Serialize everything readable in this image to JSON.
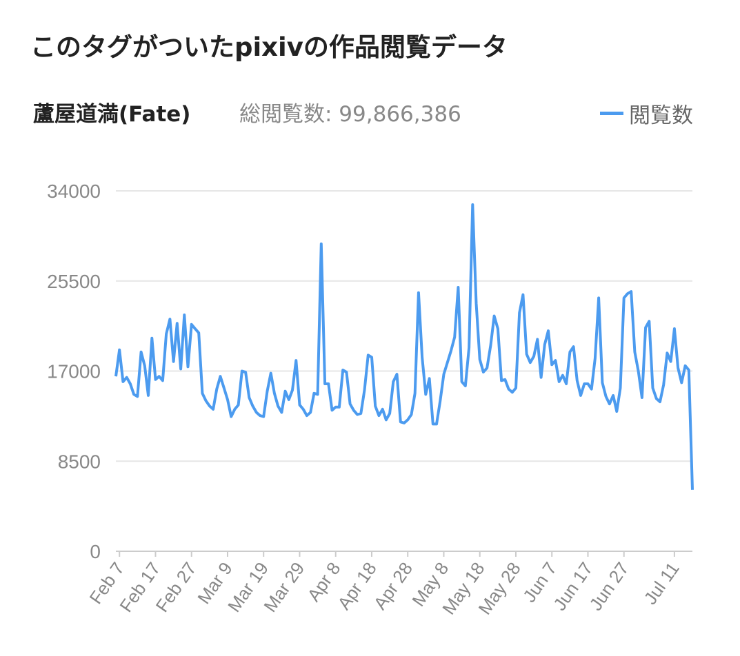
{
  "page": {
    "heading": "このタグがついたpixivの作品閲覧データ",
    "tag_name": "蘆屋道満(Fate)",
    "total_label": "総閲覧数: 99,866,386"
  },
  "chart_data": {
    "type": "line",
    "title": "",
    "xlabel": "",
    "ylabel": "",
    "ylim": [
      0,
      34000
    ],
    "yticks": [
      0,
      8500,
      17000,
      25500,
      34000
    ],
    "xtick_labels": [
      "Feb 7",
      "Feb 17",
      "Feb 27",
      "Mar 9",
      "Mar 19",
      "Mar 29",
      "Apr 8",
      "Apr 18",
      "Apr 28",
      "May 8",
      "May 18",
      "May 28",
      "Jun 7",
      "Jun 17",
      "Jun 27",
      "Jul 11"
    ],
    "xtick_days": [
      7,
      17,
      27,
      37,
      47,
      57,
      67,
      77,
      87,
      97,
      107,
      117,
      127,
      137,
      147,
      161
    ],
    "grid": true,
    "legend": "top-right",
    "color": "#4C9BEF",
    "series": [
      {
        "name": "閲覧数",
        "start_day": 6,
        "values": [
          16500,
          19000,
          16000,
          16400,
          15800,
          14800,
          14600,
          18800,
          17500,
          14700,
          20100,
          16200,
          16500,
          16100,
          20500,
          21900,
          17900,
          21500,
          17200,
          22300,
          17400,
          21400,
          21000,
          20600,
          14900,
          14200,
          13700,
          13400,
          15300,
          16500,
          15400,
          14300,
          12700,
          13400,
          13800,
          17000,
          16900,
          14500,
          13700,
          13100,
          12800,
          12700,
          15100,
          16800,
          14900,
          13700,
          13100,
          15100,
          14300,
          15200,
          18000,
          13800,
          13400,
          12800,
          13100,
          14900,
          14800,
          29000,
          15800,
          15800,
          13300,
          13600,
          13600,
          17100,
          16900,
          13900,
          13300,
          12900,
          13000,
          15200,
          18500,
          18300,
          13700,
          12800,
          13400,
          12400,
          13000,
          16000,
          16700,
          12200,
          12100,
          12400,
          12900,
          14900,
          24400,
          18300,
          14800,
          16300,
          12000,
          12000,
          14200,
          16700,
          17800,
          18900,
          20200,
          24900,
          16000,
          15600,
          19200,
          32700,
          23400,
          18100,
          16900,
          17300,
          19400,
          22200,
          21000,
          16100,
          16200,
          15300,
          15000,
          15400,
          22500,
          24200,
          18600,
          17800,
          18400,
          20000,
          16400,
          19500,
          20800,
          17600,
          18000,
          16000,
          16600,
          15800,
          18800,
          19300,
          16100,
          14700,
          15800,
          15800,
          15300,
          18200,
          23900,
          15900,
          14600,
          13900,
          14700,
          13200,
          15400,
          23900,
          24300,
          24500,
          18800,
          17000,
          14500,
          21100,
          21700,
          15400,
          14400,
          14100,
          15700,
          18700,
          17900,
          21000,
          17300,
          15900,
          17500,
          17100,
          5800
        ]
      }
    ]
  }
}
